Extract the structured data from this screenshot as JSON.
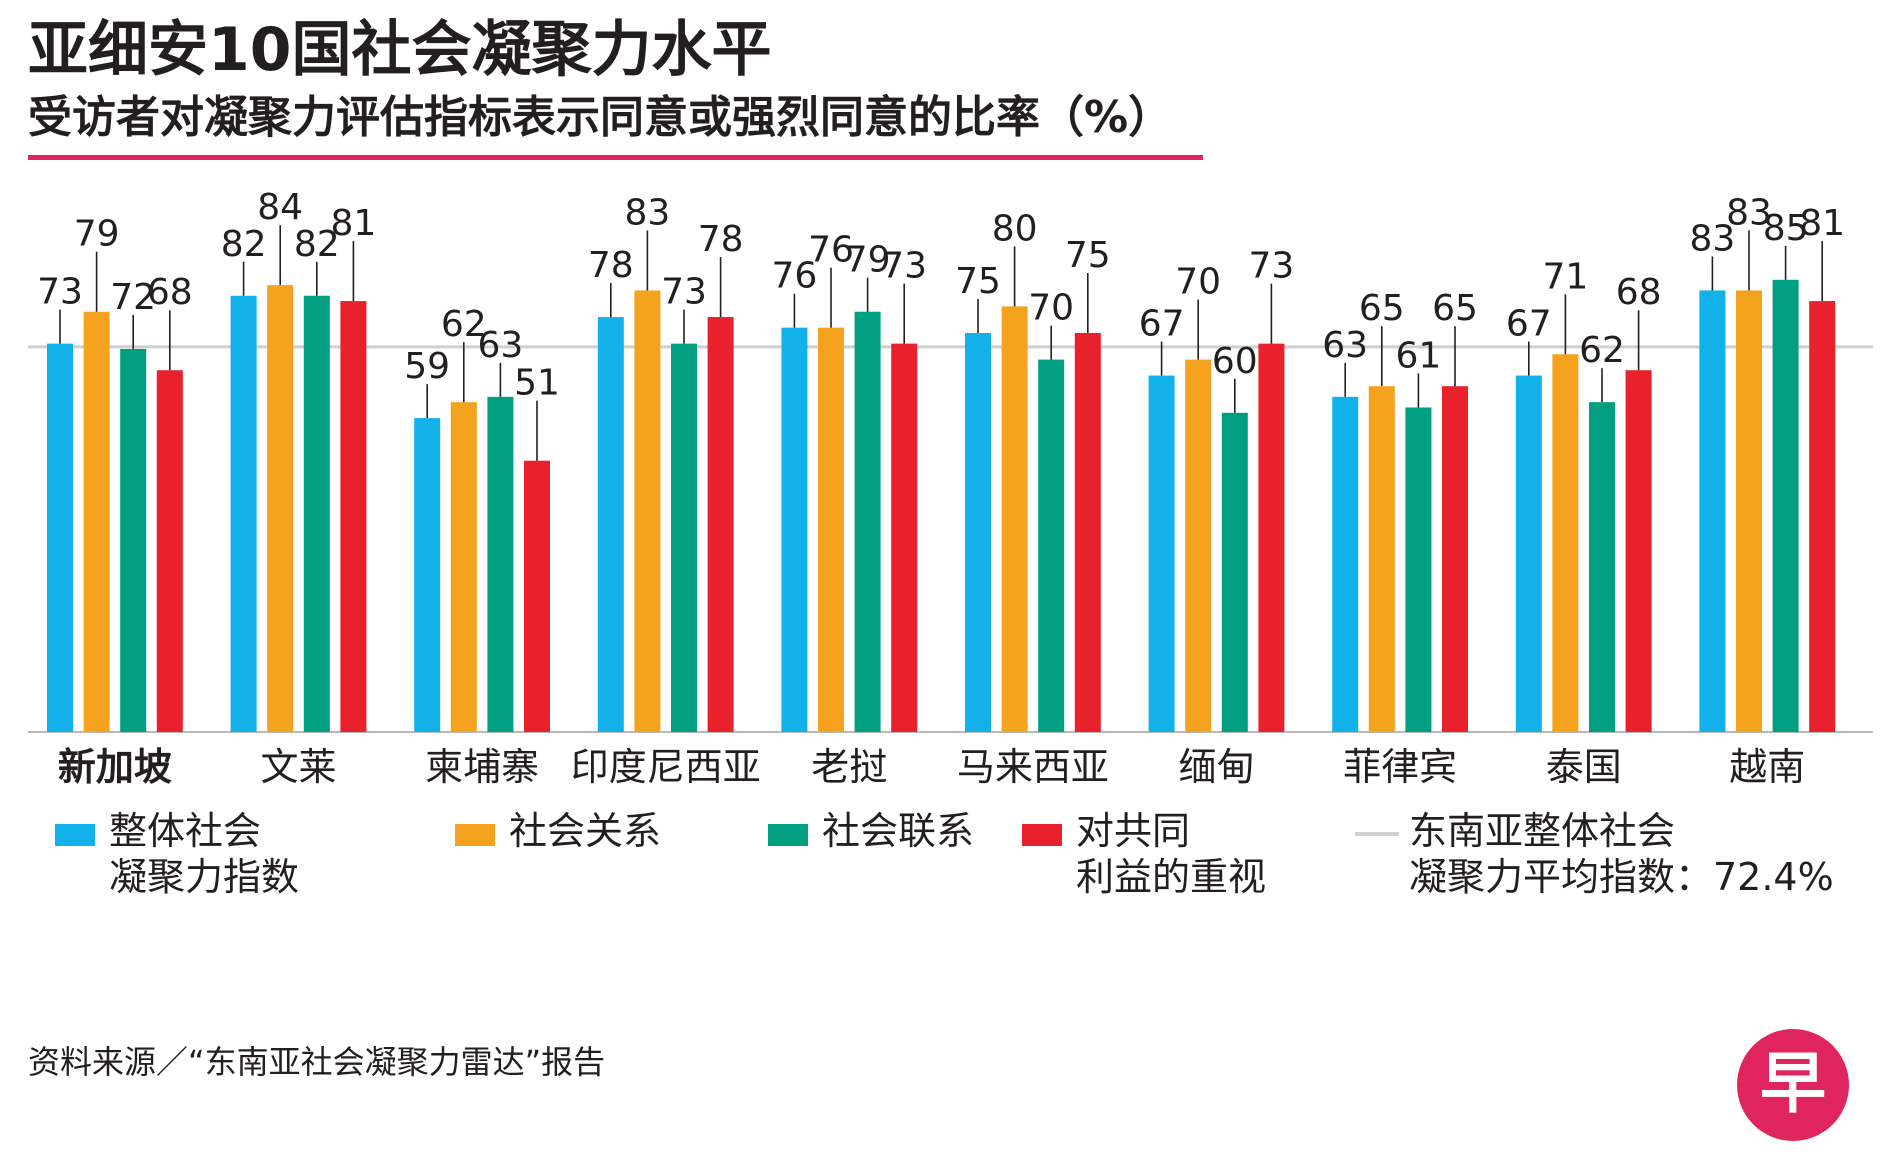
{
  "header": {
    "title": "亚细安10国社会凝聚力水平",
    "subtitle": "受访者对凝聚力评估指标表示同意或强烈同意的比率（%）"
  },
  "colors": {
    "accent_rule": "#e0245e",
    "blue": "#12b1ea",
    "orange": "#f5a21e",
    "green": "#009f82",
    "red": "#e8212d",
    "avg_line": "#cfcfcf",
    "leader": "#231f20",
    "logo": "#e0245e"
  },
  "legend": {
    "items": [
      {
        "key": "blue",
        "lines": [
          "整体社会",
          "凝聚力指数"
        ],
        "icon": "swatch"
      },
      {
        "key": "orange",
        "lines": [
          "社会关系"
        ],
        "icon": "swatch"
      },
      {
        "key": "green",
        "lines": [
          "社会联系"
        ],
        "icon": "swatch"
      },
      {
        "key": "red",
        "lines": [
          "对共同",
          "利益的重视"
        ],
        "icon": "swatch"
      },
      {
        "key": "avg_line",
        "lines": [
          "东南亚整体社会",
          "凝聚力平均指数：72.4%"
        ],
        "icon": "line"
      }
    ]
  },
  "footer": {
    "source": "资料来源／“东南亚社会凝聚力雷达”报告",
    "logo_text": "早"
  },
  "chart_data": {
    "type": "bar",
    "title": "亚细安10国社会凝聚力水平",
    "subtitle": "受访者对凝聚力评估指标表示同意或强烈同意的比率（%）",
    "categories": [
      "新加坡",
      "文莱",
      "柬埔寨",
      "印度尼西亚",
      "老挝",
      "马来西亚",
      "缅甸",
      "菲律宾",
      "泰国",
      "越南"
    ],
    "highlight_category": "新加坡",
    "series": [
      {
        "name": "整体社会凝聚力指数",
        "color_key": "blue",
        "values": [
          73,
          82,
          59,
          78,
          76,
          75,
          67,
          63,
          67,
          83
        ]
      },
      {
        "name": "社会关系",
        "color_key": "orange",
        "values": [
          79,
          84,
          62,
          83,
          76,
          80,
          70,
          65,
          71,
          83
        ]
      },
      {
        "name": "社会联系",
        "color_key": "green",
        "values": [
          72,
          82,
          63,
          73,
          79,
          70,
          60,
          61,
          62,
          85
        ]
      },
      {
        "name": "对共同利益的重视",
        "color_key": "red",
        "values": [
          68,
          81,
          51,
          78,
          73,
          75,
          73,
          65,
          68,
          81
        ]
      }
    ],
    "reference_line": {
      "label": "东南亚整体社会凝聚力平均指数",
      "value": 72.4,
      "display": "72.4%"
    },
    "ylim": [
      0,
      100
    ],
    "xlabel": "",
    "ylabel": "",
    "grid": false,
    "legend_position": "bottom"
  }
}
